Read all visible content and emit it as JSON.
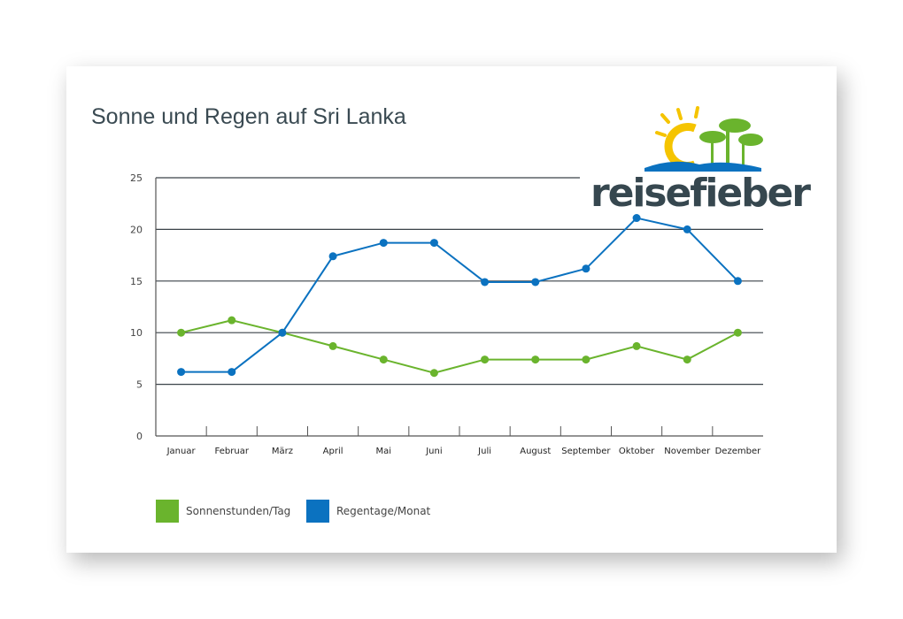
{
  "logo": {
    "text": "reisefieber"
  },
  "chart_data": {
    "type": "line",
    "title": "Sonne und Regen auf Sri Lanka",
    "categories": [
      "Januar",
      "Februar",
      "März",
      "April",
      "Mai",
      "Juni",
      "Juli",
      "August",
      "September",
      "Oktober",
      "November",
      "Dezember"
    ],
    "series": [
      {
        "name": "Sonnenstunden/Tag",
        "color": "#6ab42d",
        "values": [
          10,
          11.2,
          10,
          8.7,
          7.4,
          6.1,
          7.4,
          7.4,
          7.4,
          8.7,
          7.4,
          10
        ]
      },
      {
        "name": "Regentage/Monat",
        "color": "#0b72c0",
        "values": [
          6.2,
          6.2,
          10,
          17.4,
          18.7,
          18.7,
          14.9,
          14.9,
          16.2,
          21.1,
          20,
          15
        ]
      }
    ],
    "yticks": [
      "0",
      "5",
      "10",
      "15",
      "20",
      "25"
    ],
    "ylim": [
      0,
      25
    ],
    "xlabel": "",
    "ylabel": "",
    "grid": true,
    "legend": "bottom-left"
  }
}
